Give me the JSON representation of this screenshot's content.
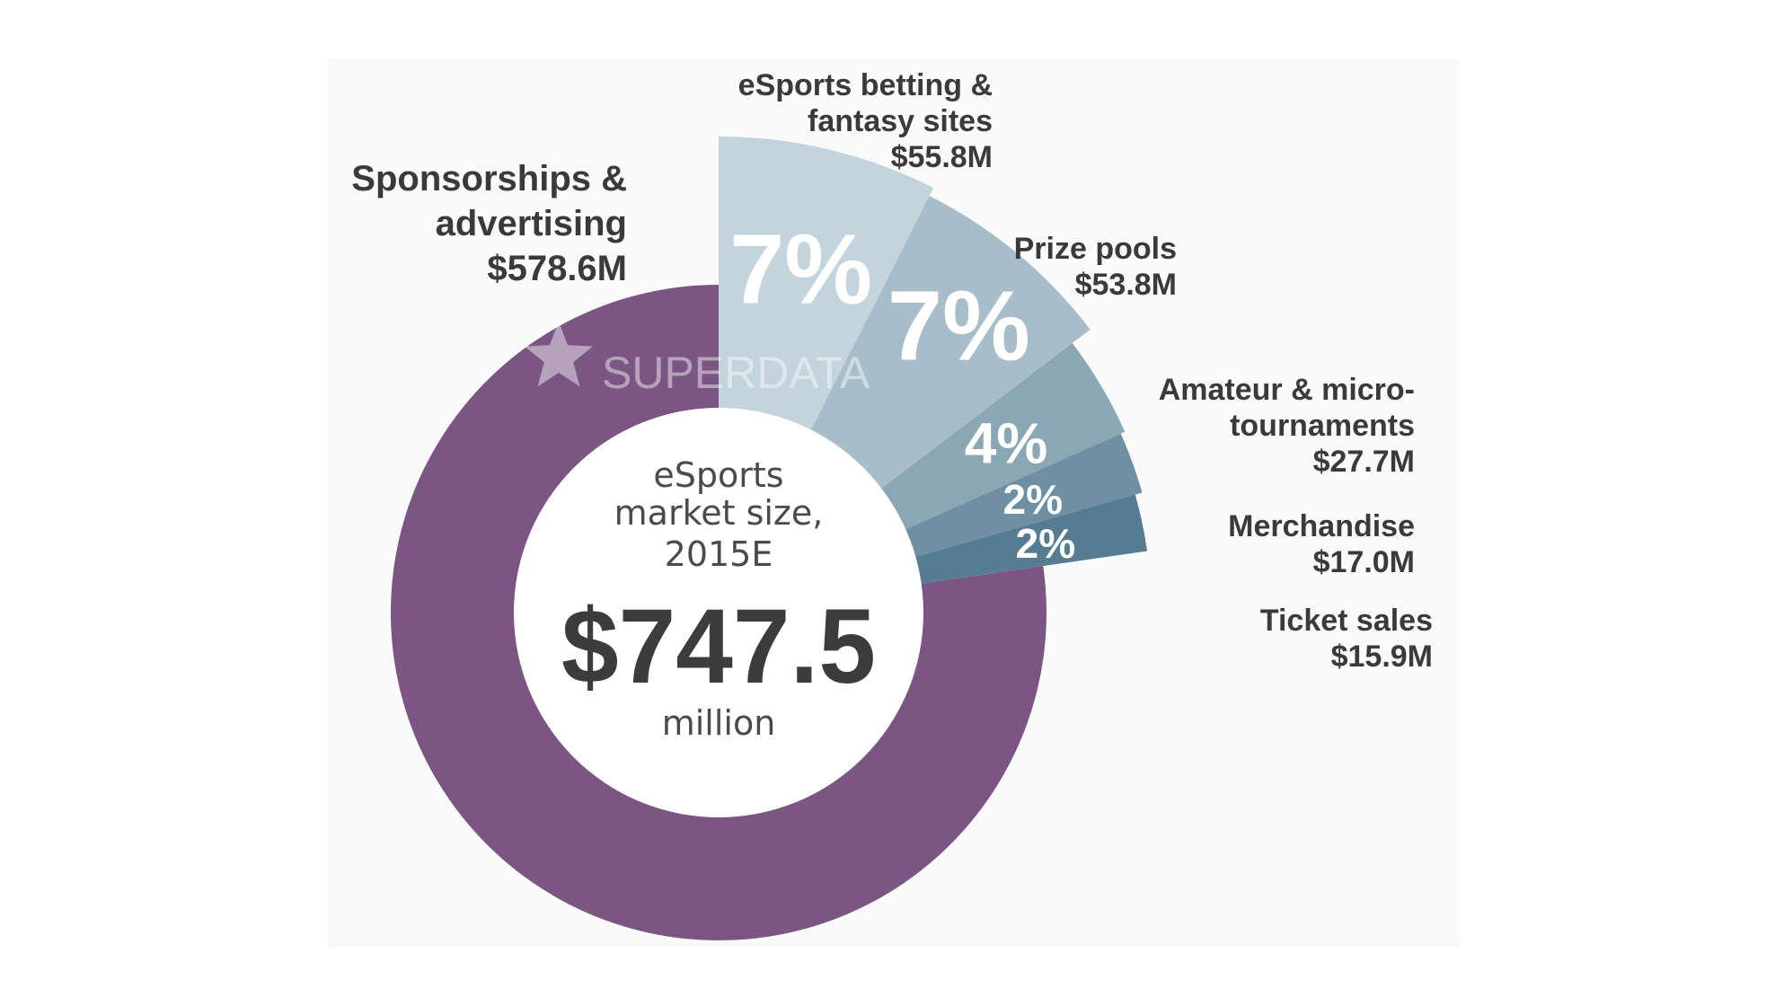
{
  "chart_data": {
    "type": "pie",
    "center": {
      "line1": "eSports",
      "line2": "market size,",
      "line3": "2015E",
      "value": "$747.5",
      "unit": "million"
    },
    "watermark": "SUPERDATA",
    "slices": [
      {
        "name_lines": [
          "Sponsorships &",
          "advertising"
        ],
        "value_label": "$578.6M",
        "value": 578.6,
        "percent_label": "",
        "color": "#7b5682"
      },
      {
        "name_lines": [
          "eSports betting &",
          "fantasy sites"
        ],
        "value_label": "$55.8M",
        "value": 55.8,
        "percent_label": "7%",
        "color": "#c3d4dc"
      },
      {
        "name_lines": [
          "Prize pools"
        ],
        "value_label": "$53.8M",
        "value": 53.8,
        "percent_label": "7%",
        "color": "#a7bdc9"
      },
      {
        "name_lines": [
          "Amateur & micro-",
          "tournaments"
        ],
        "value_label": "$27.7M",
        "value": 27.7,
        "percent_label": "4%",
        "color": "#8ca7b4"
      },
      {
        "name_lines": [
          "Merchandise"
        ],
        "value_label": "$17.0M",
        "value": 17.0,
        "percent_label": "2%",
        "color": "#6e90a2"
      },
      {
        "name_lines": [
          "Ticket sales"
        ],
        "value_label": "$15.9M",
        "value": 15.9,
        "percent_label": "2%",
        "color": "#557c91"
      }
    ]
  }
}
